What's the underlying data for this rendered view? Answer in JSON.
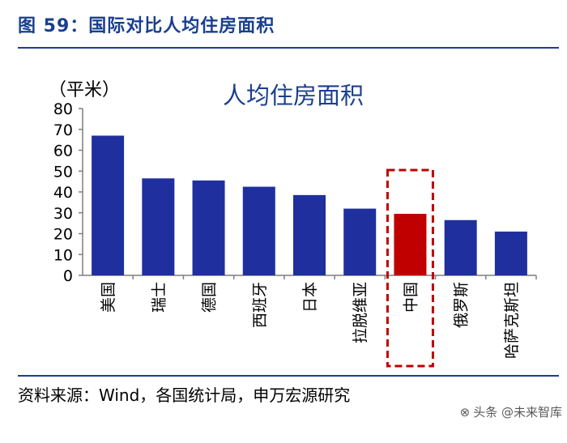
{
  "figure_title": "图 59：国际对比人均住房面积",
  "source_note": "资料来源：Wind，各国统计局，申万宏源研究",
  "watermark": "头条 @未来智库",
  "chart_data": {
    "type": "bar",
    "title": "人均住房面积",
    "ylabel": "（平米）",
    "xlabel": "",
    "ylim": [
      0,
      80
    ],
    "yticks": [
      0,
      10,
      20,
      30,
      40,
      50,
      60,
      70,
      80
    ],
    "categories": [
      "美国",
      "瑞士",
      "德国",
      "西班牙",
      "日本",
      "拉脱维亚",
      "中国",
      "俄罗斯",
      "哈萨克斯坦"
    ],
    "values": [
      67,
      46.5,
      45.5,
      42.5,
      38.5,
      32,
      29.5,
      26.5,
      21
    ],
    "highlight_category": "中国",
    "colors": {
      "bar": "#1f2f9e",
      "highlight": "#c00000",
      "highlight_box": "#c00000",
      "axis": "#7f7f7f"
    },
    "grid": false,
    "legend": "none"
  }
}
